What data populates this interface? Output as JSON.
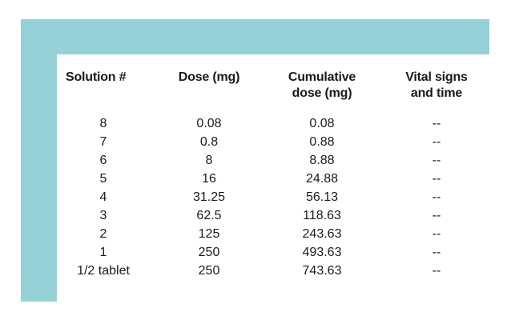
{
  "table": {
    "headers": [
      {
        "line1": "Solution #",
        "line2": ""
      },
      {
        "line1": "Dose (mg)",
        "line2": ""
      },
      {
        "line1": "Cumulative",
        "line2": "dose (mg)"
      },
      {
        "line1": "Vital signs",
        "line2": "and time"
      }
    ],
    "rows": [
      [
        "8",
        "0.08",
        "0.08",
        "--"
      ],
      [
        "7",
        "0.8",
        "0.88",
        "--"
      ],
      [
        "6",
        "8",
        "8.88",
        "--"
      ],
      [
        "5",
        "16",
        "24.88",
        "--"
      ],
      [
        "4",
        "31.25",
        "56.13",
        "--"
      ],
      [
        "3",
        "62.5",
        "118.63",
        "--"
      ],
      [
        "2",
        "125",
        "243.63",
        "--"
      ],
      [
        "1",
        "250",
        "493.63",
        "--"
      ],
      [
        "1/2 tablet",
        "250",
        "743.63",
        "--"
      ]
    ]
  },
  "colors": {
    "frame": "#94d2d7",
    "panel": "#ffffff",
    "text": "#1a1a1a"
  }
}
